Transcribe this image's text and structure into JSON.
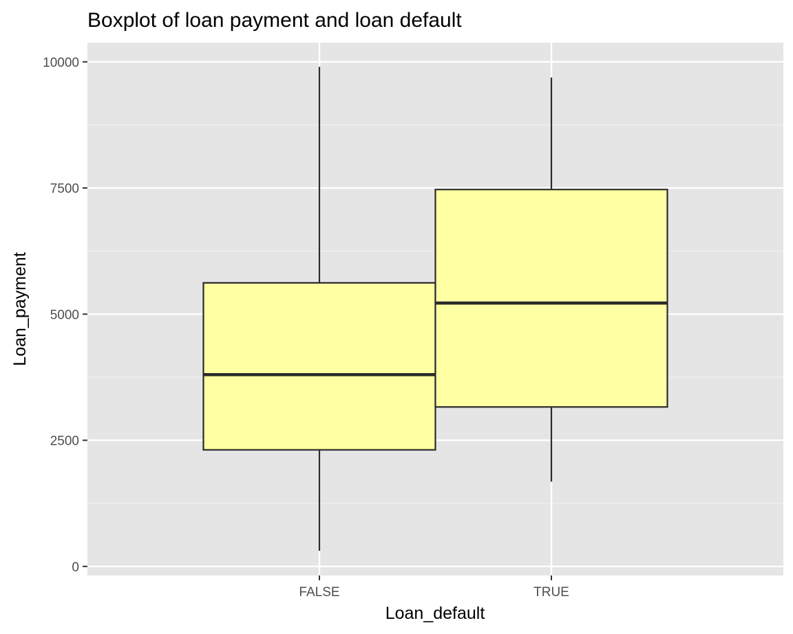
{
  "chart_data": {
    "type": "boxplot",
    "title": "Boxplot of loan payment and loan default",
    "xlabel": "Loan_default",
    "ylabel": "Loan_payment",
    "categories": [
      "FALSE",
      "TRUE"
    ],
    "boxes": [
      {
        "category": "FALSE",
        "whisker_low": 310,
        "q1": 2310,
        "median": 3800,
        "q3": 5620,
        "whisker_high": 9900
      },
      {
        "category": "TRUE",
        "whisker_low": 1680,
        "q1": 3160,
        "median": 5220,
        "q3": 7470,
        "whisker_high": 9690
      }
    ],
    "ylim": [
      -180,
      10380
    ],
    "y_ticks": [
      0,
      2500,
      5000,
      7500,
      10000
    ],
    "y_tick_labels": [
      "0",
      "2500",
      "5000",
      "7500",
      "10000"
    ],
    "grid": true,
    "colors": {
      "box_fill": "#ffffa3",
      "box_stroke": "#2b2b2b",
      "panel_background": "#e5e5e5",
      "grid_major": "#ffffff",
      "grid_minor": "#f2f2f2"
    }
  }
}
